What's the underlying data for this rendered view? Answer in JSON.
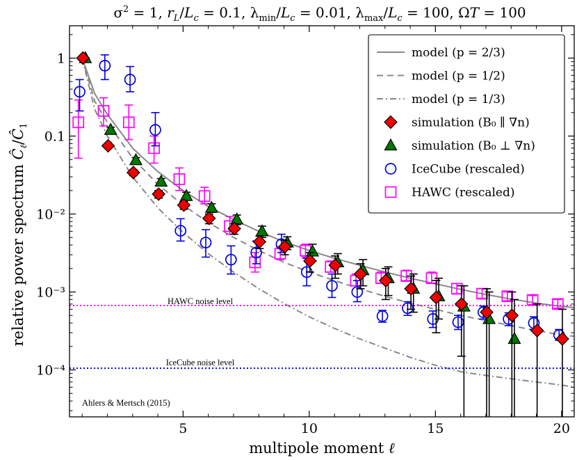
{
  "chart_data": {
    "type": "scatter",
    "title": "σ² = 1, r_L/L_c = 0.1, λ_min/L_c = 0.01, λ_max/L_c = 100, ΩT = 100",
    "xlabel": "multipole moment ℓ",
    "ylabel": "relative power spectrum Ĉ_ℓ/Ĉ_1",
    "xlim": [
      0.5,
      20.5
    ],
    "ylim": [
      2.5e-05,
      2.6
    ],
    "yscale": "log",
    "grid": false,
    "legend_position": "top-right",
    "x_ticks": [
      5,
      10,
      15,
      20
    ],
    "y_ticks": [
      {
        "value": 1,
        "label": "1"
      },
      {
        "value": 0.1,
        "label": "0.1"
      },
      {
        "value": 0.01,
        "label": "10⁻²"
      },
      {
        "value": 0.001,
        "label": "10⁻³"
      },
      {
        "value": 0.0001,
        "label": "10⁻⁴"
      }
    ],
    "legend": [
      "model (p = 2/3)",
      "model (p = 1/2)",
      "model (p = 1/3)",
      "simulation (B₀ ∥ ∇n)",
      "simulation (B₀ ⊥ ∇n)",
      "IceCube (rescaled)",
      "HAWC (rescaled)"
    ],
    "model_series": [
      {
        "name": "model (p = 2/3)",
        "style": "solid",
        "color": "#888888",
        "x": [
          1,
          1.5,
          2,
          3,
          4,
          5,
          6,
          7,
          8,
          9,
          10,
          11,
          12,
          13,
          14,
          15,
          16,
          17,
          18,
          19,
          20,
          20.5
        ],
        "y": [
          1.0,
          0.35,
          0.19,
          0.07,
          0.035,
          0.02,
          0.0125,
          0.0085,
          0.006,
          0.0044,
          0.0034,
          0.0027,
          0.0022,
          0.0018,
          0.0015,
          0.00127,
          0.00108,
          0.00093,
          0.00081,
          0.00072,
          0.00065,
          0.00063
        ]
      },
      {
        "name": "model (p = 1/2)",
        "style": "dashed",
        "color": "#888888",
        "x": [
          1,
          1.5,
          2,
          3,
          4,
          5,
          6,
          7,
          8,
          9,
          10,
          11,
          12,
          13,
          14,
          15,
          16,
          17,
          18,
          19,
          20,
          20.5
        ],
        "y": [
          1.0,
          0.28,
          0.15,
          0.052,
          0.024,
          0.013,
          0.0078,
          0.005,
          0.0034,
          0.0024,
          0.0018,
          0.0014,
          0.0011,
          0.00088,
          0.00072,
          0.0006,
          0.0005,
          0.00043,
          0.00037,
          0.00032,
          0.00028,
          0.00027
        ]
      },
      {
        "name": "model (p = 1/3)",
        "style": "dashdot",
        "color": "#888888",
        "x": [
          1,
          1.5,
          2,
          3,
          4,
          5,
          6,
          7,
          8,
          9,
          10,
          11,
          12,
          13,
          14,
          15,
          16,
          17,
          18,
          19,
          20,
          20.5
        ],
        "y": [
          1.0,
          0.22,
          0.1,
          0.03,
          0.012,
          0.0058,
          0.0031,
          0.0018,
          0.0011,
          0.00071,
          0.00048,
          0.00034,
          0.00025,
          0.00019,
          0.000145,
          0.000115,
          9.5e-05,
          8.5e-05,
          7.7e-05,
          7e-05,
          6.4e-05,
          6e-05
        ]
      }
    ],
    "noise_levels": [
      {
        "name": "HAWC noise level",
        "value": 0.00067,
        "color": "#ff00ff"
      },
      {
        "name": "IceCube noise level",
        "value": 0.000105,
        "color": "#0000dd"
      }
    ],
    "simulation_parallel": {
      "name": "simulation (B₀ ∥ ∇n)",
      "marker": "diamond",
      "fill": "#ee0000",
      "x": [
        1.03,
        2.03,
        3.03,
        4.03,
        5.03,
        6.03,
        7.03,
        8.03,
        9.03,
        10.03,
        11.03,
        12.03,
        13.03,
        14.03,
        15.03,
        16.03,
        17.03,
        18.03,
        19.03,
        20.03
      ],
      "y": [
        1.0,
        0.075,
        0.034,
        0.018,
        0.013,
        0.0088,
        0.0065,
        0.0044,
        0.0038,
        0.0025,
        0.0022,
        0.0017,
        0.0014,
        0.0011,
        0.00085,
        0.0007,
        0.00055,
        0.0005,
        0.00032,
        0.00025
      ],
      "err_low": [
        1.0,
        0.07,
        0.031,
        0.016,
        0.0115,
        0.0075,
        0.0055,
        0.0036,
        0.003,
        0.0018,
        0.0015,
        0.0011,
        0.0008,
        0.0006,
        0.0003,
        0.00015,
        2e-05,
        2e-05,
        2e-05,
        2e-05
      ],
      "err_high": [
        1.0,
        0.08,
        0.037,
        0.02,
        0.0145,
        0.01,
        0.0075,
        0.0052,
        0.0046,
        0.0032,
        0.0029,
        0.0023,
        0.002,
        0.0016,
        0.0014,
        0.0012,
        0.0011,
        0.001,
        0.0007,
        0.0006
      ]
    },
    "simulation_perpendicular": {
      "name": "simulation (B₀ ⊥ ∇n)",
      "marker": "triangle",
      "fill": "#007700",
      "x": [
        1.13,
        2.13,
        3.13,
        4.13,
        5.13,
        6.13,
        7.13,
        8.13,
        9.13,
        10.13,
        11.13,
        12.13,
        13.13,
        14.13,
        15.13,
        16.13,
        17.13,
        18.13
      ],
      "y": [
        1.0,
        0.12,
        0.049,
        0.026,
        0.017,
        0.012,
        0.0085,
        0.006,
        0.0043,
        0.0033,
        0.0024,
        0.0019,
        0.0015,
        0.0011,
        0.00088,
        0.00065,
        0.00045,
        0.00025
      ],
      "err_low": [
        1.0,
        0.11,
        0.045,
        0.0235,
        0.015,
        0.0105,
        0.0073,
        0.005,
        0.0035,
        0.0025,
        0.0017,
        0.0012,
        0.0009,
        0.00055,
        0.00045,
        2e-05,
        2e-05,
        2e-05
      ],
      "err_high": [
        1.0,
        0.13,
        0.053,
        0.0285,
        0.019,
        0.0135,
        0.0097,
        0.007,
        0.0051,
        0.0041,
        0.0031,
        0.0026,
        0.0021,
        0.0017,
        0.0015,
        0.0012,
        0.001,
        0.0008
      ]
    },
    "icecube": {
      "name": "IceCube (rescaled)",
      "marker": "circle",
      "stroke": "#0000dd",
      "x": [
        0.9,
        1.9,
        2.9,
        3.9,
        4.9,
        5.9,
        6.9,
        7.9,
        8.9,
        9.9,
        10.9,
        11.9,
        12.9,
        13.9,
        14.9,
        15.9,
        16.9,
        17.9,
        18.9,
        19.9
      ],
      "y": [
        0.37,
        0.8,
        0.53,
        0.12,
        0.0061,
        0.0043,
        0.0026,
        0.0032,
        0.0041,
        0.0018,
        0.0012,
        0.001,
        0.00049,
        0.00062,
        0.00045,
        0.00041,
        0.00055,
        0.00045,
        0.0004,
        0.00028
      ],
      "err_low": [
        0.21,
        0.53,
        0.37,
        0.075,
        0.0045,
        0.0028,
        0.0017,
        0.0023,
        0.0032,
        0.0012,
        0.00085,
        0.00075,
        0.00041,
        0.0005,
        0.00035,
        0.00033,
        0.00045,
        0.00037,
        0.00033,
        0.00024
      ],
      "err_high": [
        0.53,
        1.1,
        0.78,
        0.2,
        0.0087,
        0.0063,
        0.0039,
        0.0045,
        0.0055,
        0.0027,
        0.0017,
        0.0014,
        0.00058,
        0.00075,
        0.00057,
        0.0005,
        0.00066,
        0.00054,
        0.00048,
        0.00033
      ]
    },
    "hawc": {
      "name": "HAWC (rescaled)",
      "marker": "square",
      "stroke": "#ff00ff",
      "x": [
        0.85,
        1.85,
        2.85,
        3.85,
        4.85,
        5.85,
        6.85,
        7.85,
        8.85,
        9.85,
        10.85,
        11.85,
        12.85,
        13.85,
        14.85,
        15.85,
        16.85,
        17.85,
        18.85,
        19.85
      ],
      "y": [
        0.15,
        0.21,
        0.15,
        0.07,
        0.028,
        0.017,
        0.007,
        0.0024,
        0.0031,
        0.0034,
        0.0021,
        0.0014,
        0.0015,
        0.0016,
        0.0015,
        0.0011,
        0.00095,
        0.00088,
        0.00079,
        0.0007
      ],
      "err_low": [
        0.052,
        0.135,
        0.09,
        0.045,
        0.02,
        0.0135,
        0.0055,
        0.0018,
        0.0026,
        0.0028,
        0.0018,
        0.0012,
        0.0013,
        0.0014,
        0.0013,
        0.00095,
        0.00083,
        0.00077,
        0.00069,
        0.00062
      ],
      "err_high": [
        0.29,
        0.31,
        0.25,
        0.1,
        0.039,
        0.022,
        0.0093,
        0.0032,
        0.0038,
        0.0041,
        0.0025,
        0.0017,
        0.0018,
        0.0019,
        0.0018,
        0.00128,
        0.0011,
        0.001,
        0.0009,
        0.0008
      ]
    },
    "annotations": {
      "hawc_noise": "HAWC noise level",
      "icecube_noise": "IceCube noise level",
      "credit": "Ahlers & Mertsch (2015)"
    }
  }
}
